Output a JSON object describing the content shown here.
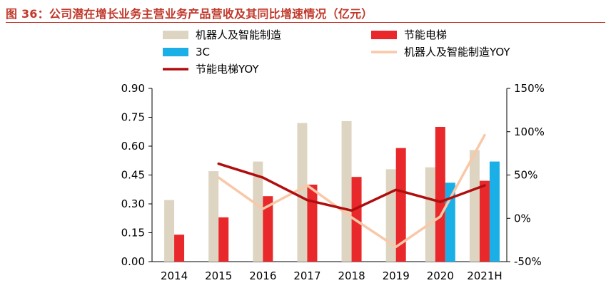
{
  "title": "图 36：公司潜在增长业务主营业务产品营收及其同比增速情况（亿元）",
  "chart_data": {
    "type": "bar",
    "categories": [
      "2014",
      "2015",
      "2016",
      "2017",
      "2018",
      "2019",
      "2020",
      "2021H"
    ],
    "ylim": [
      0,
      0.9
    ],
    "yticks": [
      "0.00",
      "0.15",
      "0.30",
      "0.45",
      "0.60",
      "0.75",
      "0.90"
    ],
    "y2lim": [
      -50,
      150
    ],
    "y2ticks": [
      "-50%",
      "0%",
      "50%",
      "100%",
      "150%"
    ],
    "series": [
      {
        "name": "机器人及智能制造",
        "kind": "bar",
        "color": "#ddd5c2",
        "values": [
          0.32,
          0.47,
          0.52,
          0.72,
          0.73,
          0.48,
          0.49,
          0.58
        ]
      },
      {
        "name": "节能电梯",
        "kind": "bar",
        "color": "#e8282a",
        "values": [
          0.14,
          0.23,
          0.34,
          0.4,
          0.44,
          0.59,
          0.7,
          0.42
        ]
      },
      {
        "name": "3C",
        "kind": "bar",
        "color": "#1aafe6",
        "values": [
          null,
          null,
          null,
          null,
          null,
          null,
          0.41,
          0.52
        ]
      },
      {
        "name": "机器人及智能制造YOY",
        "kind": "line",
        "axis": "right",
        "color": "#f8c8a8",
        "values": [
          null,
          47,
          11,
          38,
          1,
          -33,
          2,
          96
        ]
      },
      {
        "name": "节能电梯YOY",
        "kind": "line",
        "axis": "right",
        "color": "#b00e0e",
        "values": [
          null,
          63,
          47,
          21,
          9,
          33,
          19,
          38
        ]
      }
    ]
  }
}
